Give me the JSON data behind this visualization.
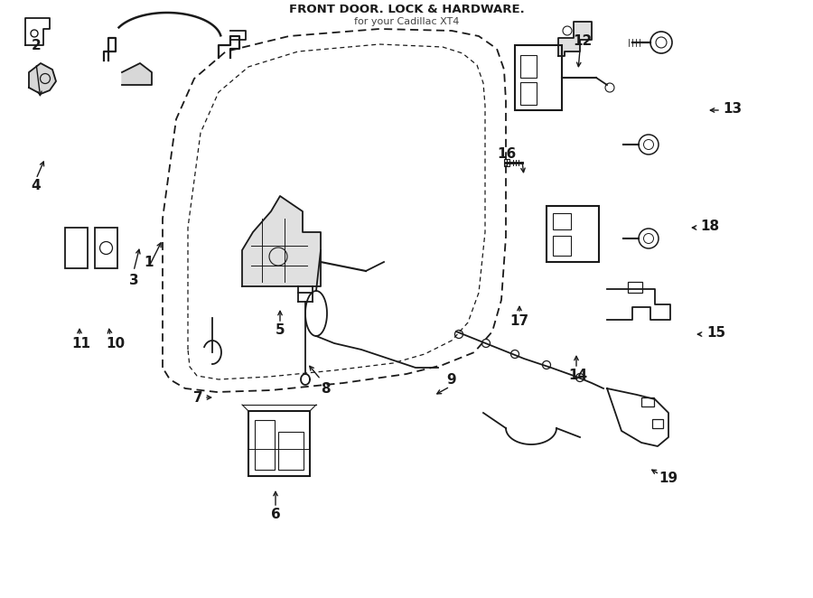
{
  "title": "FRONT DOOR. LOCK & HARDWARE.",
  "subtitle": "for your Cadillac XT4",
  "bg": "#ffffff",
  "lc": "#1a1a1a",
  "figsize": [
    9.0,
    6.62
  ],
  "dpi": 100,
  "xlim": [
    0,
    9.0
  ],
  "ylim": [
    0,
    6.62
  ]
}
